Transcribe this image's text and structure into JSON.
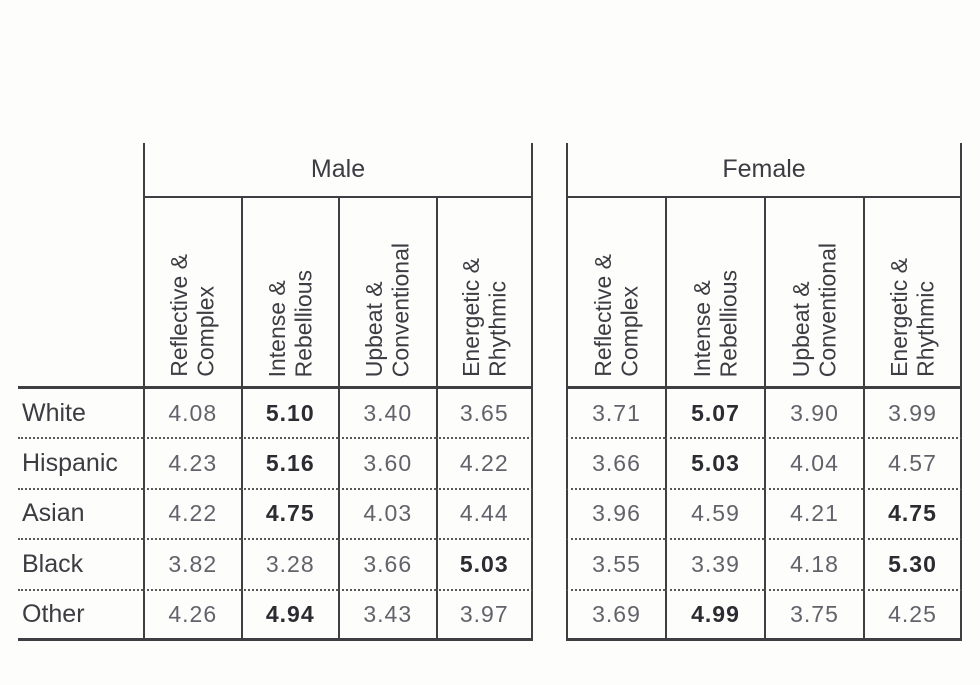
{
  "page": {
    "background": "#fdfdfc"
  },
  "table": {
    "groups": [
      "Male",
      "Female"
    ],
    "categories": [
      "Reflective &\nComplex",
      "Intense &\nRebellious",
      "Upbeat &\nConventional",
      "Energetic &\nRhythmic"
    ],
    "rows": [
      {
        "label": "White",
        "male": {
          "values": [
            "4.08",
            "5.10",
            "3.40",
            "3.65"
          ],
          "bold_index": 1
        },
        "female": {
          "values": [
            "3.71",
            "5.07",
            "3.90",
            "3.99"
          ],
          "bold_index": 1
        }
      },
      {
        "label": "Hispanic",
        "male": {
          "values": [
            "4.23",
            "5.16",
            "3.60",
            "4.22"
          ],
          "bold_index": 1
        },
        "female": {
          "values": [
            "3.66",
            "5.03",
            "4.04",
            "4.57"
          ],
          "bold_index": 1
        }
      },
      {
        "label": "Asian",
        "male": {
          "values": [
            "4.22",
            "4.75",
            "4.03",
            "4.44"
          ],
          "bold_index": 1
        },
        "female": {
          "values": [
            "3.96",
            "4.59",
            "4.21",
            "4.75"
          ],
          "bold_index": 3
        }
      },
      {
        "label": "Black",
        "male": {
          "values": [
            "3.82",
            "3.28",
            "3.66",
            "5.03"
          ],
          "bold_index": 3
        },
        "female": {
          "values": [
            "3.55",
            "3.39",
            "4.18",
            "5.30"
          ],
          "bold_index": 3
        }
      },
      {
        "label": "Other",
        "male": {
          "values": [
            "4.26",
            "4.94",
            "3.43",
            "3.97"
          ],
          "bold_index": 1
        },
        "female": {
          "values": [
            "3.69",
            "4.99",
            "3.75",
            "4.25"
          ],
          "bold_index": 1
        }
      }
    ],
    "colors": {
      "line": "#3f3f43",
      "dotted": "#585858",
      "label_text": "#3c3c42",
      "value_text": "#62626a",
      "value_bold_text": "#2b2b31"
    }
  }
}
